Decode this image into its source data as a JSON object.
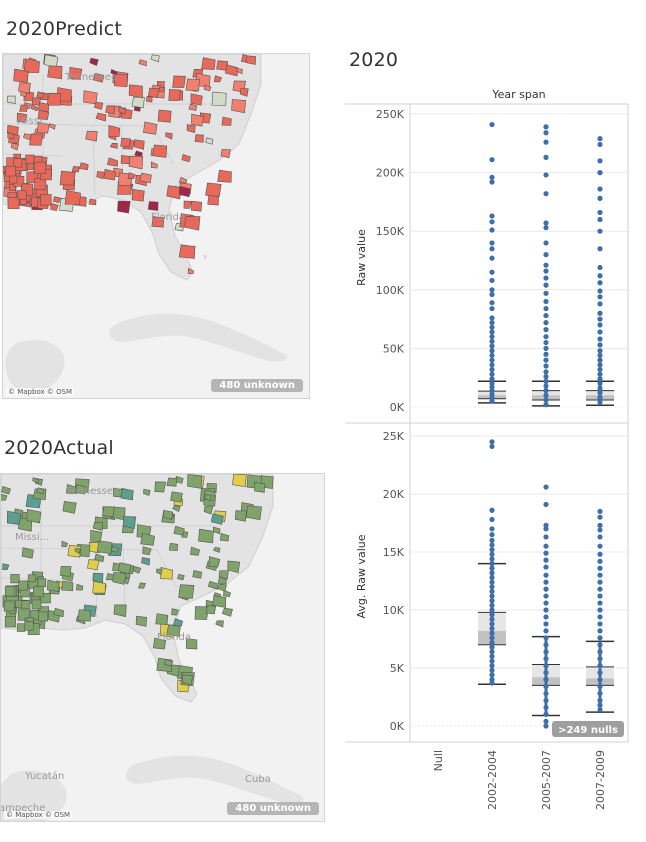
{
  "dashboard": {
    "predict_title": "2020Predict",
    "actual_title": "2020Actual",
    "chart_title": "2020"
  },
  "map_predict": {
    "attribution": "© Mapbox © OSM",
    "unknown_badge": "480 unknown",
    "labels": [
      "Tennessee",
      "Missi...",
      "Florida"
    ],
    "colors": {
      "fill_low": "#f08070",
      "fill_mid": "#e8685a",
      "fill_high": "#a3254a",
      "fill_light": "#d0dcc8"
    }
  },
  "map_actual": {
    "attribution": "© Mapbox © OSM",
    "unknown_badge": "480 unknown",
    "labels": [
      "Tennessee",
      "Missi...",
      "Florida",
      "Yucatán",
      "Cuba",
      "ampeche"
    ],
    "colors": {
      "fill_main": "#7fa36b",
      "fill_teal": "#5e9e8e",
      "fill_yellow": "#e0cd4a"
    }
  },
  "chart_data": {
    "type": "scatter",
    "header": "Year span",
    "categories": [
      "Null",
      "2002-2004",
      "2005-2007",
      "2007-2009"
    ],
    "panels": [
      {
        "name": "raw",
        "ylabel": "Raw value",
        "ylim": [
          0,
          250000
        ],
        "yticks": [
          0,
          50000,
          100000,
          150000,
          200000,
          250000
        ],
        "ytick_labels": [
          "0K",
          "50K",
          "100K",
          "150K",
          "200K",
          "250K"
        ],
        "series": [
          {
            "category": "2002-2004",
            "points": [
              241000,
              211000,
              196000,
              192000,
              163000,
              158000,
              151000,
              140000,
              135000,
              127000,
              115000,
              108000,
              100000,
              96000,
              89000,
              84000,
              76000,
              72000,
              68000,
              64000,
              60000,
              56000,
              52000,
              48000,
              44000,
              40000,
              36000,
              32000,
              28000,
              24000,
              20000,
              17000,
              14000,
              11000,
              8000,
              5000
            ],
            "box": {
              "lower_whisker": 3500,
              "q1": 7000,
              "median": 10000,
              "q3": 13500,
              "upper_whisker": 22000
            }
          },
          {
            "category": "2005-2007",
            "points": [
              239000,
              234000,
              226000,
              213000,
              198000,
              182000,
              157000,
              153000,
              140000,
              130000,
              121000,
              116000,
              110000,
              104000,
              97000,
              90000,
              84000,
              78000,
              72000,
              66000,
              60000,
              55000,
              50000,
              45000,
              40000,
              35000,
              30000,
              26000,
              22000,
              18000,
              14000,
              10000,
              6000,
              2000
            ],
            "box": {
              "lower_whisker": 1000,
              "q1": 6000,
              "median": 10000,
              "q3": 14000,
              "upper_whisker": 22000
            }
          },
          {
            "category": "2007-2009",
            "points": [
              229000,
              224000,
              210000,
              200000,
              186000,
              178000,
              166000,
              160000,
              150000,
              135000,
              119000,
              112000,
              106000,
              99000,
              94000,
              88000,
              80000,
              75000,
              70000,
              64000,
              58000,
              53000,
              48000,
              44000,
              40000,
              36000,
              32000,
              28000,
              24000,
              20000,
              16000,
              12000,
              8000,
              4000
            ],
            "box": {
              "lower_whisker": 1500,
              "q1": 6000,
              "median": 10000,
              "q3": 14000,
              "upper_whisker": 22000
            }
          }
        ]
      },
      {
        "name": "avg",
        "ylabel": "Avg. Raw value",
        "ylim": [
          0,
          25000
        ],
        "yticks": [
          0,
          5000,
          10000,
          15000,
          20000,
          25000
        ],
        "ytick_labels": [
          "0K",
          "5K",
          "10K",
          "15K",
          "20K",
          "25K"
        ],
        "nulls_badge": ">249 nulls",
        "series": [
          {
            "category": "2002-2004",
            "points": [
              24500,
              24100,
              18600,
              17800,
              17000,
              16500,
              16000,
              15600,
              15200,
              14800,
              14400,
              14000,
              13600,
              13200,
              12800,
              12400,
              12000,
              11600,
              11200,
              10800,
              10400,
              10000,
              9600,
              9200,
              8800,
              8400,
              8000,
              7600,
              7200,
              6800,
              6400,
              6000,
              5600,
              5200,
              4800,
              4400,
              4000,
              3700
            ],
            "box": {
              "lower_whisker": 3600,
              "q1": 7000,
              "median": 8200,
              "q3": 9800,
              "upper_whisker": 14000
            }
          },
          {
            "category": "2005-2007",
            "points": [
              20600,
              19100,
              17300,
              17000,
              16300,
              15500,
              14900,
              14300,
              13700,
              13000,
              12400,
              11800,
              11200,
              10600,
              10000,
              9400,
              8800,
              8200,
              7600,
              7000,
              6400,
              5800,
              5200,
              4600,
              4000,
              3400,
              2800,
              2200,
              1600,
              1000,
              400,
              0
            ],
            "box": {
              "lower_whisker": 900,
              "q1": 3500,
              "median": 4200,
              "q3": 5300,
              "upper_whisker": 7700
            }
          },
          {
            "category": "2007-2009",
            "points": [
              18500,
              18000,
              17300,
              16900,
              16300,
              15500,
              14800,
              14200,
              13600,
              13000,
              12400,
              11800,
              11200,
              10600,
              10000,
              9400,
              8800,
              8200,
              7600,
              7000,
              6400,
              5800,
              5200,
              4600,
              4000,
              3400,
              2800,
              2200,
              1800,
              1400
            ],
            "box": {
              "lower_whisker": 1200,
              "q1": 3500,
              "median": 4100,
              "q3": 5100,
              "upper_whisker": 7300
            }
          }
        ]
      }
    ],
    "colors": {
      "point": "#3e6fa8",
      "box_outer": "#e6e6e6",
      "box_inner": "#c2c2c2",
      "whisker": "#333333",
      "gridline": "#e8e8e8",
      "badge": "#9e9e9e"
    }
  }
}
